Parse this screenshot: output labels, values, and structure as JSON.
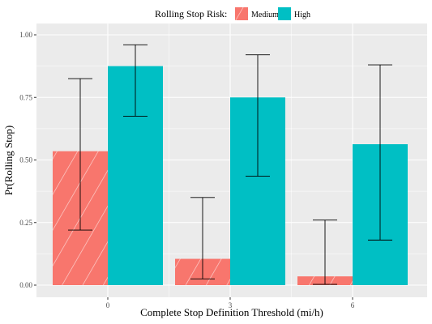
{
  "chart_data": {
    "type": "bar",
    "xlabel": "Complete Stop Definition Threshold (mi/h)",
    "ylabel": "Pr(Rolling Stop)",
    "categories": [
      "0",
      "3",
      "6"
    ],
    "ylim": [
      0,
      1.0
    ],
    "yticks": [
      "0.00",
      "0.25",
      "0.50",
      "0.75",
      "1.00"
    ],
    "grid": true,
    "legend": {
      "title": "Rolling Stop Risk:",
      "position": "top",
      "entries": [
        "Medium",
        "High"
      ]
    },
    "series": [
      {
        "name": "Medium",
        "color": "#f8766d",
        "pattern": "diagonal-stripes",
        "values": [
          0.535,
          0.105,
          0.035
        ],
        "err_low": [
          0.22,
          0.025,
          0.003
        ],
        "err_high": [
          0.825,
          0.35,
          0.26
        ]
      },
      {
        "name": "High",
        "color": "#00bfc4",
        "pattern": "solid",
        "values": [
          0.875,
          0.75,
          0.563
        ],
        "err_low": [
          0.675,
          0.435,
          0.18
        ],
        "err_high": [
          0.96,
          0.92,
          0.88
        ]
      }
    ],
    "panel_background": "#ebebeb",
    "gridline_color": "#ffffff"
  }
}
